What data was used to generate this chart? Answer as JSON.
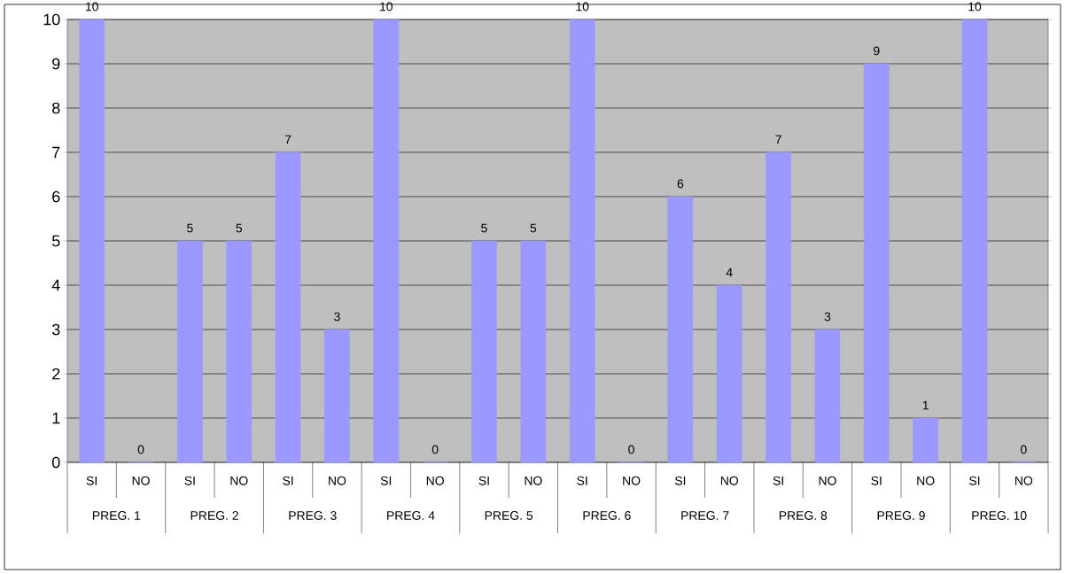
{
  "chart_data": {
    "type": "bar",
    "categories": [
      "SI",
      "NO",
      "SI",
      "NO",
      "SI",
      "NO",
      "SI",
      "NO",
      "SI",
      "NO",
      "SI",
      "NO",
      "SI",
      "NO",
      "SI",
      "NO",
      "SI",
      "NO",
      "SI",
      "NO"
    ],
    "values": [
      10,
      0,
      5,
      5,
      7,
      3,
      10,
      0,
      5,
      5,
      10,
      0,
      6,
      4,
      7,
      3,
      9,
      1,
      10,
      0
    ],
    "color": "#9999ff",
    "ylim": [
      0,
      10
    ],
    "yticks": [
      0,
      1,
      2,
      3,
      4,
      5,
      6,
      7,
      8,
      9,
      10
    ],
    "grid": "y",
    "data_labels": true,
    "annotations": [
      "PREG. 1",
      "PREG. 2",
      "PREG. 3",
      "PREG. 4",
      "PREG. 5",
      "PREG. 6",
      "PREG. 7",
      "PREG. 8",
      "PREG. 9",
      "PREG. 10"
    ]
  }
}
